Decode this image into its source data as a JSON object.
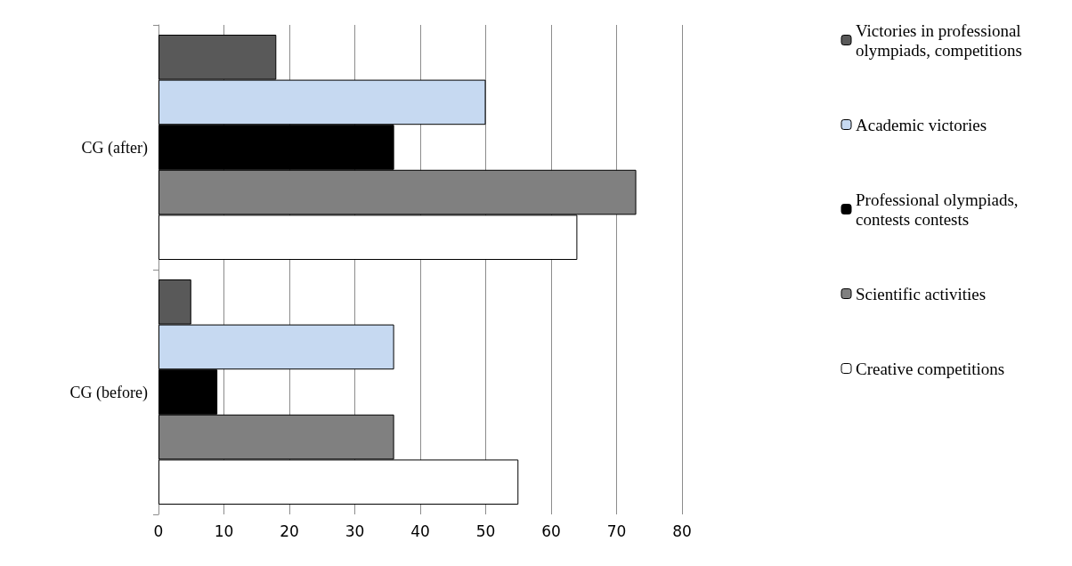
{
  "chart_data": {
    "type": "bar",
    "orientation": "horizontal",
    "categories": [
      "CG (after)",
      "CG (before)"
    ],
    "series": [
      {
        "name": "Victories in professional olympiads, competitions",
        "color": "#595959",
        "values": [
          18,
          5
        ]
      },
      {
        "name": "Academic victories",
        "color": "#c6d9f1",
        "values": [
          50,
          36
        ]
      },
      {
        "name": "Professional olympiads, contests contests",
        "color": "#000000",
        "values": [
          36,
          9
        ]
      },
      {
        "name": "Scientific activities",
        "color": "#808080",
        "values": [
          73,
          36
        ]
      },
      {
        "name": "Creative competitions",
        "color": "#ffffff",
        "values": [
          64,
          55
        ]
      }
    ],
    "xlim": [
      0,
      80
    ],
    "xticks": [
      0,
      10,
      20,
      30,
      40,
      50,
      60,
      70,
      80
    ],
    "grid": "x",
    "legend": "right"
  }
}
